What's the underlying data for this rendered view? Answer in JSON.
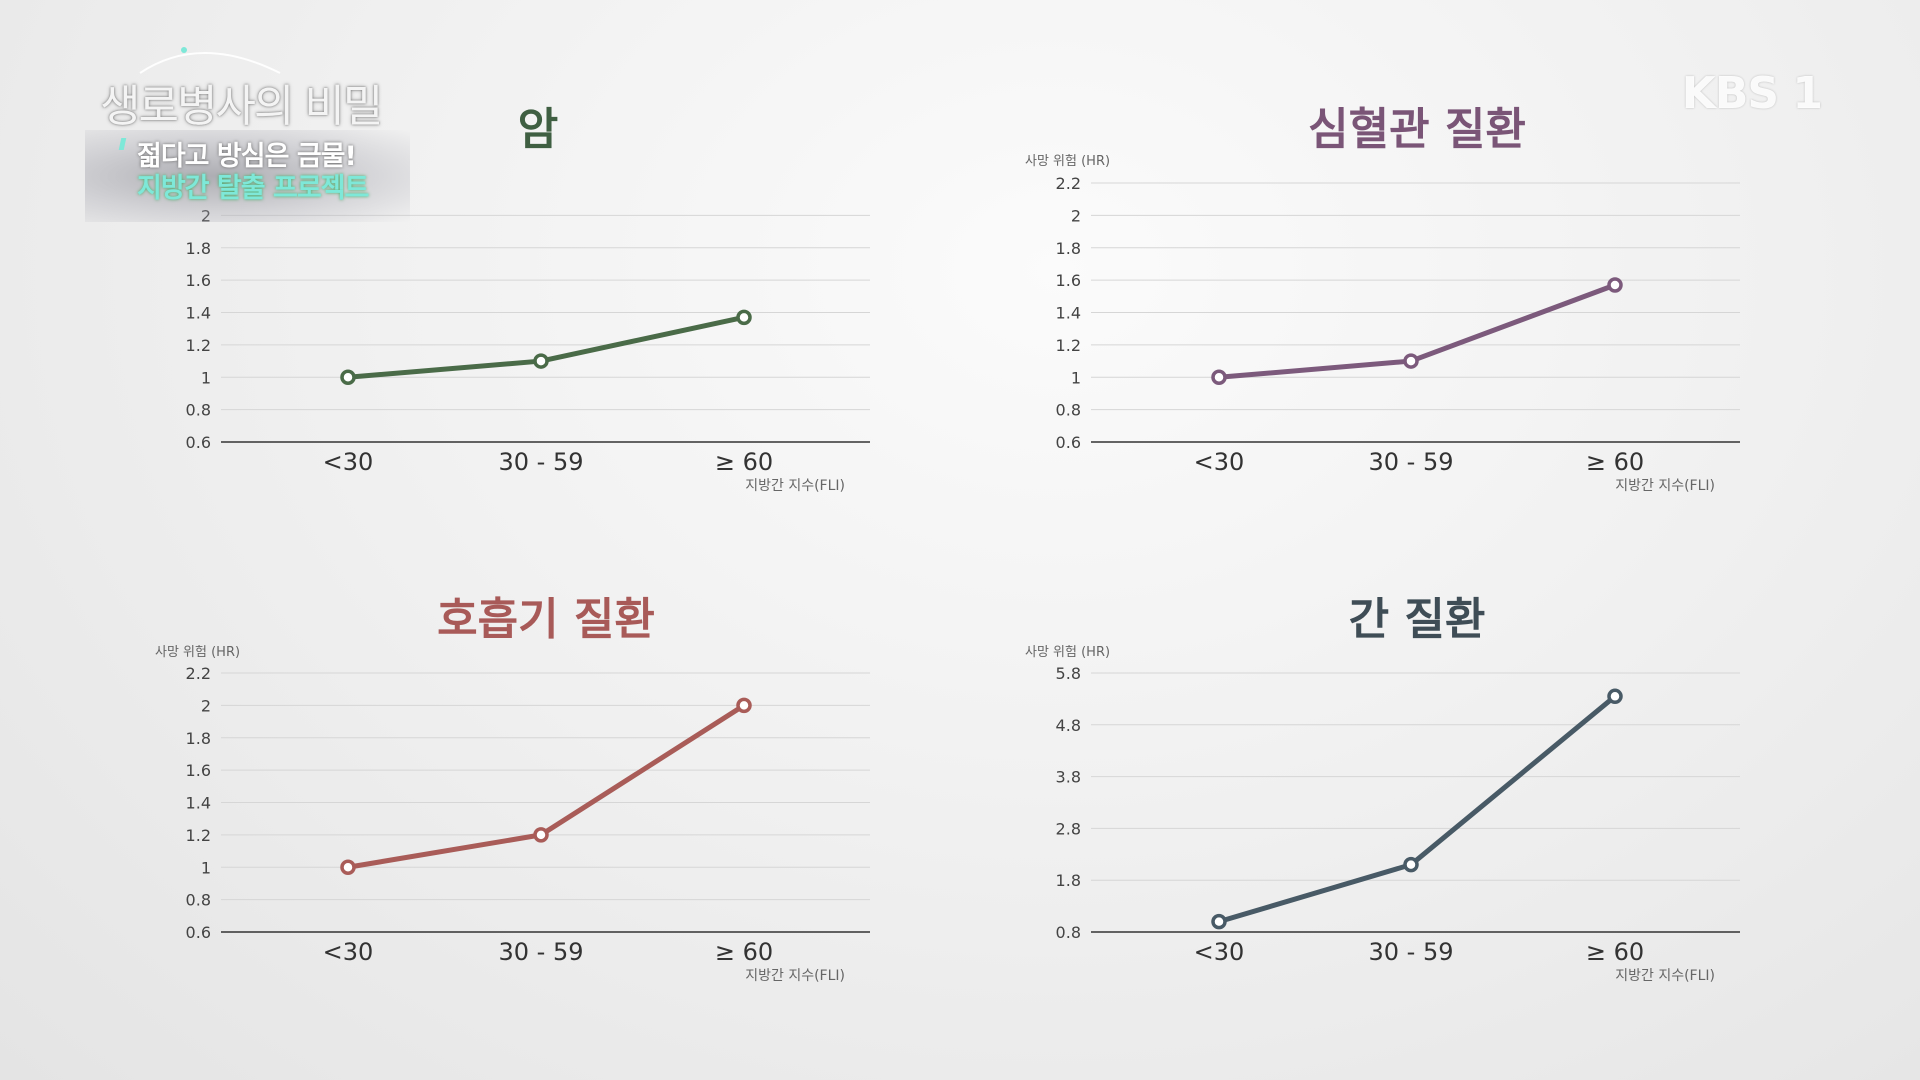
{
  "show_title": "생로병사의 비밀",
  "caption": {
    "line1": "젊다고 방심은 금물!",
    "line2": "지방간 탈출 프로젝트"
  },
  "broadcaster": "KBS 1",
  "chart_data": [
    {
      "type": "line",
      "title": "암",
      "title_color": "#3f5f42",
      "line_color": "#4a6b48",
      "ylabel": "",
      "xlabel": "지방간 지수(FLI)",
      "categories": [
        "<30",
        "30 - 59",
        "≥ 60"
      ],
      "values": [
        1.0,
        1.1,
        1.37
      ],
      "ylim": [
        0.6,
        2.2
      ],
      "yticks": [
        "0.6",
        "0.8",
        "1",
        "1.2",
        "1.4",
        "1.6",
        "1.8",
        "2"
      ],
      "grid": true
    },
    {
      "type": "line",
      "title": "심혈관 질환",
      "title_color": "#7a5577",
      "line_color": "#7c5a7c",
      "ylabel": "사망 위험 (HR)",
      "xlabel": "지방간 지수(FLI)",
      "categories": [
        "<30",
        "30 - 59",
        "≥ 60"
      ],
      "values": [
        1.0,
        1.1,
        1.57
      ],
      "ylim": [
        0.6,
        2.2
      ],
      "yticks": [
        "0.6",
        "0.8",
        "1",
        "1.2",
        "1.4",
        "1.6",
        "1.8",
        "2",
        "2.2"
      ],
      "grid": true
    },
    {
      "type": "line",
      "title": "호흡기 질환",
      "title_color": "#a85a58",
      "line_color": "#a95c58",
      "ylabel": "사망 위험 (HR)",
      "xlabel": "지방간 지수(FLI)",
      "categories": [
        "<30",
        "30 - 59",
        "≥ 60"
      ],
      "values": [
        1.0,
        1.2,
        2.0
      ],
      "ylim": [
        0.6,
        2.2
      ],
      "yticks": [
        "0.6",
        "0.8",
        "1",
        "1.2",
        "1.4",
        "1.6",
        "1.8",
        "2",
        "2.2"
      ],
      "grid": true
    },
    {
      "type": "line",
      "title": "간 질환",
      "title_color": "#3f4d56",
      "line_color": "#485a66",
      "ylabel": "사망 위험 (HR)",
      "xlabel": "지방간 지수(FLI)",
      "categories": [
        "<30",
        "30 - 59",
        "≥ 60"
      ],
      "values": [
        1.0,
        2.1,
        5.35
      ],
      "ylim": [
        0.8,
        5.8
      ],
      "yticks": [
        "0.8",
        "1.8",
        "2.8",
        "3.8",
        "4.8",
        "5.8"
      ],
      "grid": true
    }
  ]
}
